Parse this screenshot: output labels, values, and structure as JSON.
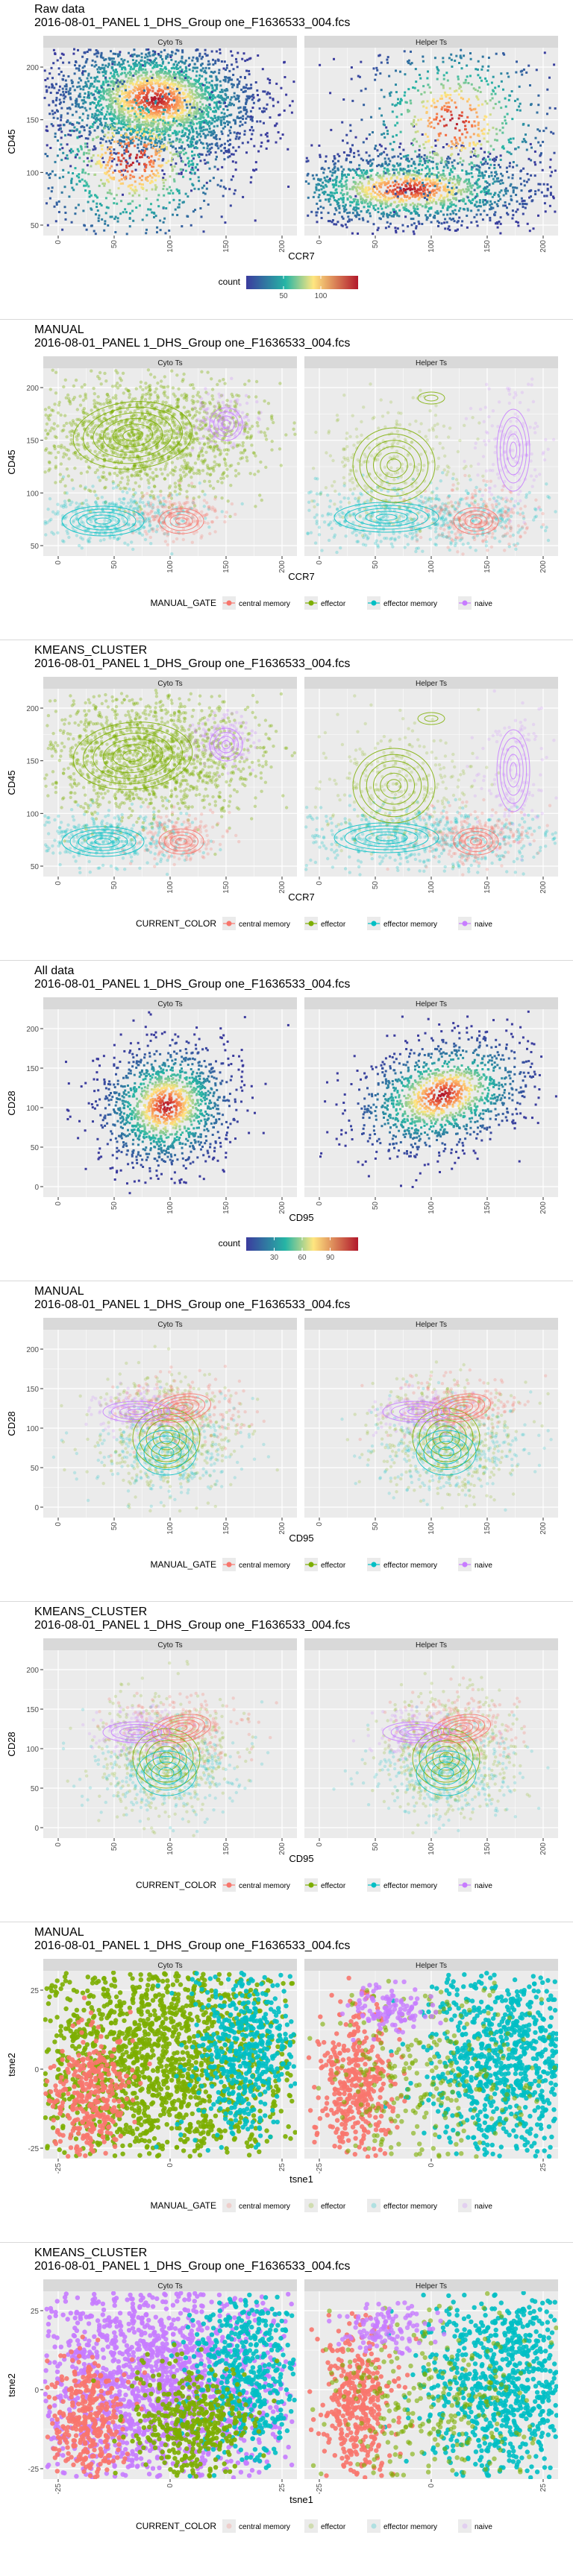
{
  "colors": {
    "panel_bg": "#ebebeb",
    "grid": "#ffffff",
    "strip_bg": "#d9d9d9",
    "central_memory": "#f8766d",
    "effector": "#7cae00",
    "effector_memory": "#00bfc4",
    "naive": "#c77cff",
    "density_low": "#3b3b9e",
    "density_mid": "#26b5a5",
    "density_high": "#ffe680",
    "density_top": "#b2182b"
  },
  "class_labels": [
    "central memory",
    "effector",
    "effector memory",
    "naive"
  ],
  "charts": [
    {
      "id": "raw-ccr7",
      "top": 0,
      "title": "Raw data",
      "subtitle": "2016-08-01_PANEL 1_DHS_Group one_F1636533_004.fcs",
      "panels": [
        "Cyto Ts",
        "Helper Ts"
      ],
      "xlabel": "CCR7",
      "ylabel": "CD45",
      "xticks": [
        "0",
        "50",
        "100",
        "150",
        "200"
      ],
      "yticks": [
        "50",
        "100",
        "150",
        "200"
      ],
      "legend": {
        "type": "gradient",
        "title": "count",
        "ticks": [
          "50",
          "100"
        ]
      },
      "mode": "density"
    },
    {
      "id": "manual-ccr7",
      "top": 430,
      "title": "MANUAL",
      "subtitle": "2016-08-01_PANEL 1_DHS_Group one_F1636533_004.fcs",
      "panels": [
        "Cyto Ts",
        "Helper Ts"
      ],
      "xlabel": "CCR7",
      "ylabel": "CD45",
      "xticks": [
        "0",
        "50",
        "100",
        "150",
        "200"
      ],
      "yticks": [
        "50",
        "100",
        "150",
        "200"
      ],
      "legend": {
        "type": "classes",
        "title": "MANUAL_GATE"
      },
      "mode": "classes"
    },
    {
      "id": "kmeans-ccr7",
      "top": 860,
      "title": "KMEANS_CLUSTER",
      "subtitle": "2016-08-01_PANEL 1_DHS_Group one_F1636533_004.fcs",
      "panels": [
        "Cyto Ts",
        "Helper Ts"
      ],
      "xlabel": "CCR7",
      "ylabel": "CD45",
      "xticks": [
        "0",
        "50",
        "100",
        "150",
        "200"
      ],
      "yticks": [
        "50",
        "100",
        "150",
        "200"
      ],
      "legend": {
        "type": "classes",
        "title": "CURRENT_COLOR"
      },
      "mode": "classes"
    },
    {
      "id": "all-cd95",
      "top": 1290,
      "title": "All data",
      "subtitle": "2016-08-01_PANEL 1_DHS_Group one_F1636533_004.fcs",
      "panels": [
        "Cyto Ts",
        "Helper Ts"
      ],
      "xlabel": "CD95",
      "ylabel": "CD28",
      "xticks": [
        "0",
        "50",
        "100",
        "150",
        "200"
      ],
      "yticks": [
        "0",
        "50",
        "100",
        "150",
        "200"
      ],
      "legend": {
        "type": "gradient",
        "title": "count",
        "ticks": [
          "30",
          "60",
          "90"
        ]
      },
      "mode": "density2"
    },
    {
      "id": "manual-cd95",
      "top": 1720,
      "title": "MANUAL",
      "subtitle": "2016-08-01_PANEL 1_DHS_Group one_F1636533_004.fcs",
      "panels": [
        "Cyto Ts",
        "Helper Ts"
      ],
      "xlabel": "CD95",
      "ylabel": "CD28",
      "xticks": [
        "0",
        "50",
        "100",
        "150",
        "200"
      ],
      "yticks": [
        "0",
        "50",
        "100",
        "150",
        "200"
      ],
      "legend": {
        "type": "classes",
        "title": "MANUAL_GATE"
      },
      "mode": "classes2"
    },
    {
      "id": "kmeans-cd95",
      "top": 2150,
      "title": "KMEANS_CLUSTER",
      "subtitle": "2016-08-01_PANEL 1_DHS_Group one_F1636533_004.fcs",
      "panels": [
        "Cyto Ts",
        "Helper Ts"
      ],
      "xlabel": "CD95",
      "ylabel": "CD28",
      "xticks": [
        "0",
        "50",
        "100",
        "150",
        "200"
      ],
      "yticks": [
        "0",
        "50",
        "100",
        "150",
        "200"
      ],
      "legend": {
        "type": "classes",
        "title": "CURRENT_COLOR"
      },
      "mode": "classes2"
    },
    {
      "id": "manual-tsne",
      "top": 2580,
      "title": "MANUAL",
      "subtitle": "2016-08-01_PANEL 1_DHS_Group one_F1636533_004.fcs",
      "panels": [
        "Cyto Ts",
        "Helper Ts"
      ],
      "xlabel": "tsne1",
      "ylabel": "tsne2",
      "xticks": [
        "-25",
        "0",
        "25"
      ],
      "yticks": [
        "-25",
        "0",
        "25"
      ],
      "legend": {
        "type": "classes",
        "title": "MANUAL_GATE",
        "faded": true
      },
      "mode": "tsne"
    },
    {
      "id": "kmeans-tsne",
      "top": 3010,
      "title": "KMEANS_CLUSTER",
      "subtitle": "2016-08-01_PANEL 1_DHS_Group one_F1636533_004.fcs",
      "panels": [
        "Cyto Ts",
        "Helper Ts"
      ],
      "xlabel": "tsne1",
      "ylabel": "tsne2",
      "xticks": [
        "-25",
        "0",
        "25"
      ],
      "yticks": [
        "-25",
        "0",
        "25"
      ],
      "legend": {
        "type": "classes",
        "title": "CURRENT_COLOR",
        "faded": true
      },
      "mode": "tsne2"
    }
  ],
  "chart_data": [
    {
      "type": "heatmap",
      "title": "Raw data",
      "xlabel": "CCR7",
      "ylabel": "CD45",
      "facets": [
        "Cyto Ts",
        "Helper Ts"
      ],
      "xlim": [
        -10,
        225
      ],
      "ylim": [
        35,
        235
      ],
      "legend_title": "count",
      "legend_ticks": [
        50,
        100
      ],
      "grid": true
    },
    {
      "type": "scatter",
      "title": "MANUAL",
      "xlabel": "CCR7",
      "ylabel": "CD45",
      "facets": [
        "Cyto Ts",
        "Helper Ts"
      ],
      "series": [
        {
          "name": "central memory"
        },
        {
          "name": "effector"
        },
        {
          "name": "effector memory"
        },
        {
          "name": "naive"
        }
      ],
      "legend_title": "MANUAL_GATE",
      "grid": true
    },
    {
      "type": "scatter",
      "title": "KMEANS_CLUSTER",
      "xlabel": "CCR7",
      "ylabel": "CD45",
      "facets": [
        "Cyto Ts",
        "Helper Ts"
      ],
      "series": [
        {
          "name": "central memory"
        },
        {
          "name": "effector"
        },
        {
          "name": "effector memory"
        },
        {
          "name": "naive"
        }
      ],
      "legend_title": "CURRENT_COLOR",
      "grid": true
    },
    {
      "type": "heatmap",
      "title": "All data",
      "xlabel": "CD95",
      "ylabel": "CD28",
      "facets": [
        "Cyto Ts",
        "Helper Ts"
      ],
      "xlim": [
        -10,
        225
      ],
      "ylim": [
        -5,
        235
      ],
      "legend_title": "count",
      "legend_ticks": [
        30,
        60,
        90
      ],
      "grid": true
    },
    {
      "type": "scatter",
      "title": "MANUAL",
      "xlabel": "CD95",
      "ylabel": "CD28",
      "facets": [
        "Cyto Ts",
        "Helper Ts"
      ],
      "series": [
        {
          "name": "central memory"
        },
        {
          "name": "effector"
        },
        {
          "name": "effector memory"
        },
        {
          "name": "naive"
        }
      ],
      "legend_title": "MANUAL_GATE",
      "grid": true
    },
    {
      "type": "scatter",
      "title": "KMEANS_CLUSTER",
      "xlabel": "CD95",
      "ylabel": "CD28",
      "facets": [
        "Cyto Ts",
        "Helper Ts"
      ],
      "series": [
        {
          "name": "central memory"
        },
        {
          "name": "effector"
        },
        {
          "name": "effector memory"
        },
        {
          "name": "naive"
        }
      ],
      "legend_title": "CURRENT_COLOR",
      "grid": true
    },
    {
      "type": "scatter",
      "title": "MANUAL",
      "xlabel": "tsne1",
      "ylabel": "tsne2",
      "facets": [
        "Cyto Ts",
        "Helper Ts"
      ],
      "series": [
        {
          "name": "central memory"
        },
        {
          "name": "effector"
        },
        {
          "name": "effector memory"
        },
        {
          "name": "naive"
        }
      ],
      "legend_title": "MANUAL_GATE",
      "grid": true
    },
    {
      "type": "scatter",
      "title": "KMEANS_CLUSTER",
      "xlabel": "tsne1",
      "ylabel": "tsne2",
      "facets": [
        "Cyto Ts",
        "Helper Ts"
      ],
      "series": [
        {
          "name": "central memory"
        },
        {
          "name": "effector"
        },
        {
          "name": "effector memory"
        },
        {
          "name": "naive"
        }
      ],
      "legend_title": "CURRENT_COLOR",
      "grid": true
    }
  ]
}
